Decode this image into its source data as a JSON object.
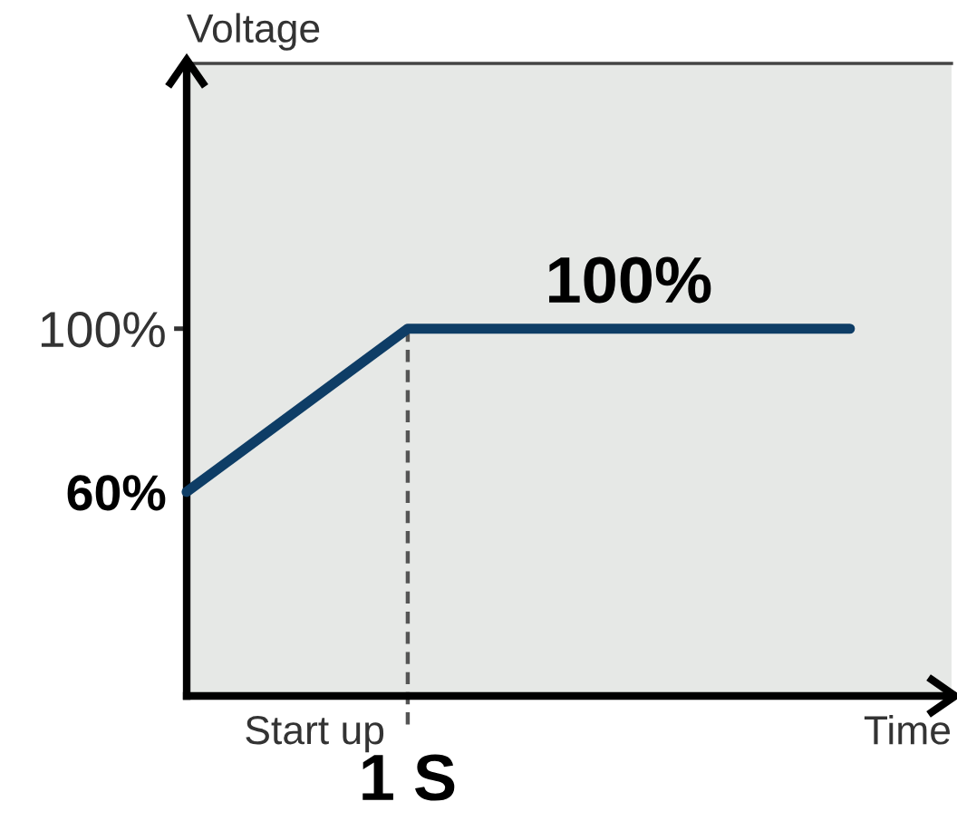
{
  "chart_data": {
    "type": "line",
    "ylabel": "Voltage",
    "xlabel": "Time",
    "categories": [
      null,
      "1 S",
      null,
      null
    ],
    "series": [
      {
        "color": "#0e3d66",
        "values": [
          60,
          100,
          100,
          100
        ],
        "value_labels": [
          null,
          null,
          "100%",
          null
        ]
      }
    ],
    "ylim": [
      10,
      165
    ],
    "yticks": [
      {
        "value": 60,
        "label": "60%"
      },
      {
        "value": 100,
        "label": "100%"
      }
    ],
    "ref_lines": [
      {
        "axis": "x",
        "value": "1 S",
        "color": "#555555",
        "line_style": "dashed"
      }
    ],
    "annotations": [
      "Start up"
    ],
    "marker": "none",
    "line_style": "solid"
  }
}
